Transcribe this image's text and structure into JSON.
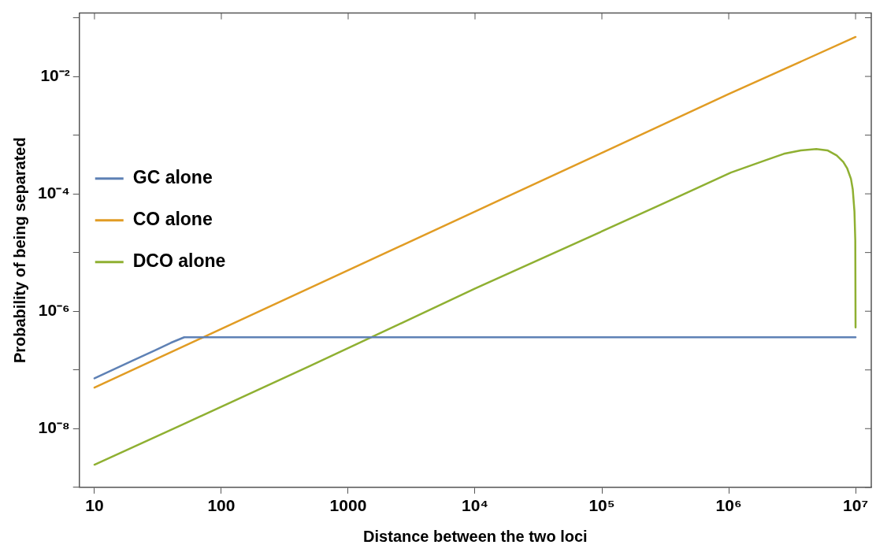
{
  "chart_data": {
    "type": "line",
    "xlabel": "Distance between the two loci",
    "ylabel": "Probability of being separated",
    "log": "xy",
    "grid": false,
    "legend": "left",
    "marker": "none",
    "line_style": "solid",
    "xlim": [
      7.6,
      13300000
    ],
    "ylim": [
      1e-09,
      0.12
    ],
    "xticks": [
      10,
      100,
      1000,
      {
        "value": 10000,
        "label": "10⁴"
      },
      {
        "value": 100000,
        "label": "10⁵"
      },
      {
        "value": 1000000,
        "label": "10⁶"
      },
      {
        "value": 10000000,
        "label": "10⁷"
      }
    ],
    "yticks": [
      {
        "value": 1e-09,
        "label": null
      },
      {
        "value": 1e-08,
        "label": "10⁻⁸"
      },
      {
        "value": 1e-07,
        "label": null
      },
      {
        "value": 1e-06,
        "label": "10⁻⁶"
      },
      {
        "value": 1e-05,
        "label": null
      },
      {
        "value": 0.0001,
        "label": "10⁻⁴"
      },
      {
        "value": 0.001,
        "label": null
      },
      {
        "value": 0.01,
        "label": "10⁻²"
      },
      {
        "value": 0.1,
        "label": null
      }
    ],
    "series": [
      {
        "name": "GC alone",
        "color": "#5e81b5",
        "x": [
          10,
          20,
          30,
          40,
          51,
          10000000
        ],
        "values": [
          7.2e-08,
          1.44e-07,
          2.16e-07,
          2.9e-07,
          3.6e-07,
          3.6e-07
        ]
      },
      {
        "name": "CO alone",
        "color": "#e19c24",
        "x": [
          10,
          100,
          1000,
          10000,
          100000,
          1000000,
          10000000
        ],
        "values": [
          5e-08,
          5e-07,
          5e-06,
          5e-05,
          0.0005,
          0.005,
          0.047
        ]
      },
      {
        "name": "DCO alone",
        "color": "#8fb032",
        "x": [
          10,
          51,
          493,
          10000,
          245000,
          1040000,
          2000000,
          2720000,
          3700000,
          4900000,
          6000000,
          7100000,
          8000000,
          8600000,
          9200000,
          9500000,
          9800000,
          9950000,
          10000000
        ],
        "values": [
          2.43e-09,
          1.21e-08,
          1.15e-07,
          2.43e-06,
          5.5e-05,
          0.00023,
          0.00038,
          0.00048,
          0.00055,
          0.00058,
          0.00055,
          0.00045,
          0.00035,
          0.00027,
          0.00018,
          0.00012,
          5e-05,
          1.6e-05,
          5.3e-07
        ]
      }
    ]
  }
}
